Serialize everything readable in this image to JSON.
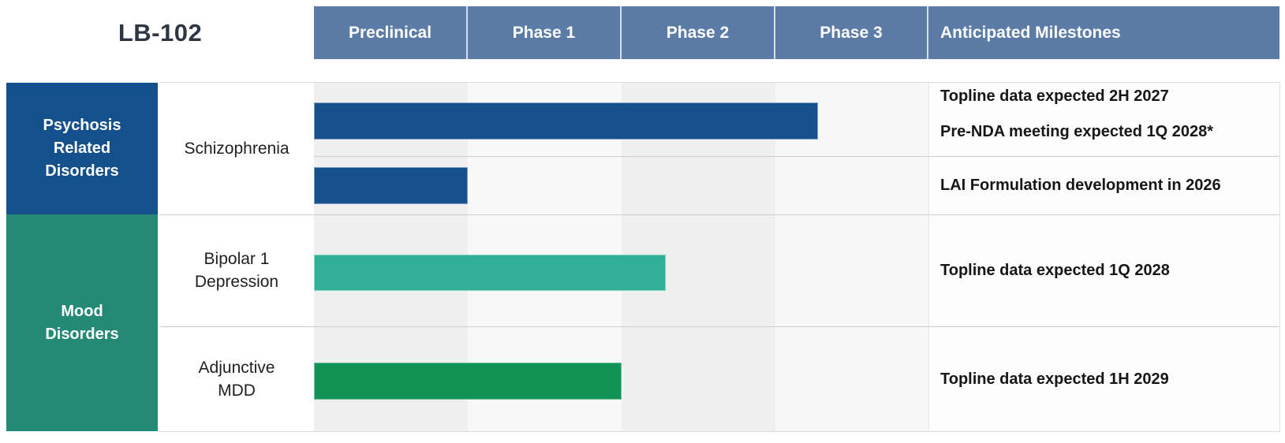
{
  "title": "LB-102",
  "header": {
    "columns": [
      "Preclinical",
      "Phase 1",
      "Phase 2",
      "Phase 3",
      "Anticipated Milestones"
    ]
  },
  "categories": [
    {
      "label": "Psychosis\nRelated\nDisorders",
      "color": "#14508C"
    },
    {
      "label": "Mood\nDisorders",
      "color": "#248975"
    }
  ],
  "indications": [
    {
      "label": "Schizophrenia"
    },
    {
      "label": "Bipolar 1\nDepression"
    },
    {
      "label": "Adjunctive\nMDD"
    }
  ],
  "colors": {
    "header_bg": "#5B7CA6",
    "stripe_dark": "#EFEFF0",
    "stripe_light": "#F8F8F9",
    "milestone_bg": "#FDFDFD",
    "title_text": "#2E3644"
  },
  "chart_data": {
    "type": "bar",
    "orientation": "horizontal",
    "title": "LB-102",
    "x_axis_phases": [
      "Preclinical",
      "Phase 1",
      "Phase 2",
      "Phase 3"
    ],
    "x_range_phases": [
      0,
      4
    ],
    "grid": "alternating phase column shading",
    "series": [
      {
        "category": "Psychosis Related Disorders",
        "indication": "Schizophrenia",
        "phases_completed": 3.28,
        "width_pct": 82,
        "color": "#17508E",
        "milestones": [
          "Topline data expected 2H 2027",
          "Pre-NDA meeting expected 1Q 2028*"
        ]
      },
      {
        "category": "Psychosis Related Disorders",
        "indication": "Schizophrenia",
        "phases_completed": 1.0,
        "width_pct": 25,
        "color": "#17508E",
        "milestones": [
          "LAI Formulation development in 2026"
        ]
      },
      {
        "category": "Mood Disorders",
        "indication": "Bipolar 1 Depression",
        "phases_completed": 2.29,
        "width_pct": 57.2,
        "color": "#31B098",
        "milestones": [
          "Topline data expected 1Q 2028"
        ]
      },
      {
        "category": "Mood Disorders",
        "indication": "Adjunctive MDD",
        "phases_completed": 2.0,
        "width_pct": 50,
        "color": "#119357",
        "milestones": [
          "Topline data expected 1H 2029"
        ]
      }
    ]
  }
}
